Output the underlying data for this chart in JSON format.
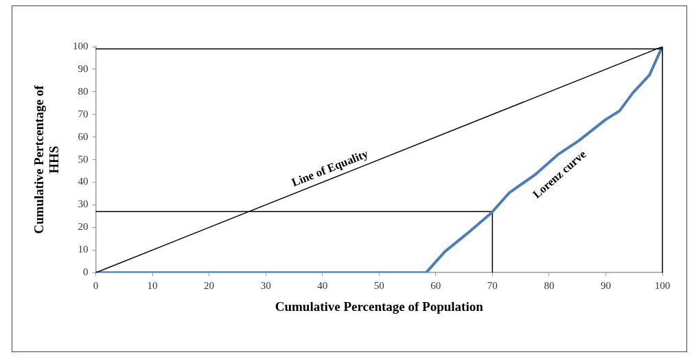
{
  "chart_data": {
    "type": "line",
    "xlabel": "Cumulative Percentage of Population",
    "ylabel": "Cumulative Pertcentage of HHS",
    "xlim": [
      0,
      100
    ],
    "ylim": [
      0,
      100
    ],
    "xticks": [
      0,
      10,
      20,
      30,
      40,
      50,
      60,
      70,
      80,
      90,
      100
    ],
    "yticks": [
      0,
      10,
      20,
      30,
      40,
      50,
      60,
      70,
      80,
      90,
      100
    ],
    "grid": false,
    "legend": false,
    "marker": "none",
    "line_style": "solid",
    "ref_lines": [
      {
        "axis": "y",
        "value": 99,
        "color": "#000000"
      },
      {
        "axis": "x",
        "value": 100,
        "color": "#000000"
      }
    ],
    "series": [
      {
        "name": "Line of Equality",
        "color": "#000000",
        "x": [
          0,
          100
        ],
        "values": [
          0,
          100
        ]
      },
      {
        "name": "Lorenz curve",
        "color": "#4a7ebb",
        "x": [
          0,
          58.3,
          61.6,
          65.6,
          69.8,
          73,
          77.6,
          81.7,
          85.3,
          89.9,
          92.4,
          94.8,
          97.7,
          99.7,
          100
        ],
        "values": [
          0,
          0,
          9.3,
          17.4,
          26.4,
          35.4,
          43.5,
          52.5,
          58.5,
          67.6,
          71.5,
          79.6,
          87.4,
          98.5,
          100
        ]
      },
      {
        "color": "#000000",
        "x": [
          0,
          70,
          70
        ],
        "values": [
          27,
          27,
          0
        ]
      }
    ]
  }
}
